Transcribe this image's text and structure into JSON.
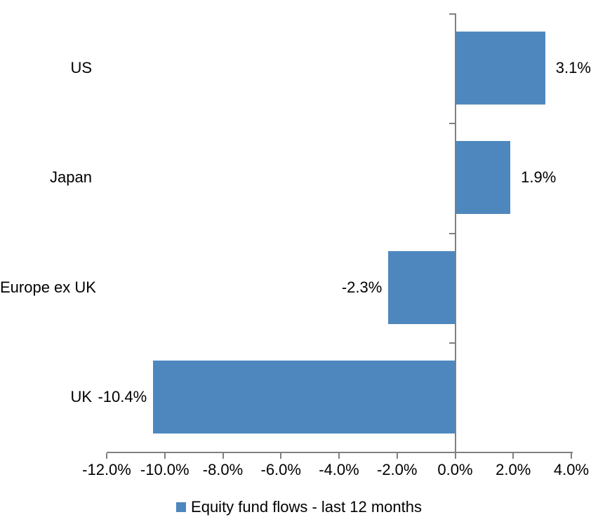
{
  "chart_data": {
    "type": "bar",
    "orientation": "horizontal",
    "categories": [
      "US",
      "Japan",
      "Europe ex UK",
      "UK"
    ],
    "values": [
      3.1,
      1.9,
      -2.3,
      -10.4
    ],
    "value_labels": [
      "3.1%",
      "1.9%",
      "-2.3%",
      "-10.4%"
    ],
    "series": [
      {
        "name": "Equity fund flows - last 12 months",
        "values": [
          3.1,
          1.9,
          -2.3,
          -10.4
        ]
      }
    ],
    "title": "",
    "xlabel": "",
    "ylabel": "",
    "xlim": [
      -12,
      4
    ],
    "x_ticks": [
      -12,
      -10,
      -8,
      -6,
      -4,
      -2,
      0,
      2,
      4
    ],
    "x_tick_labels": [
      "-12.0%",
      "-10.0%",
      "-8.0%",
      "-6.0%",
      "-4.0%",
      "-2.0%",
      "0.0%",
      "2.0%",
      "4.0%"
    ],
    "grid": "off",
    "legend_position": "bottom",
    "bar_color": "#4E87BE",
    "axis_color": "#808080",
    "text_color": "#000000"
  },
  "legend": {
    "label": "Equity fund flows - last 12 months"
  }
}
